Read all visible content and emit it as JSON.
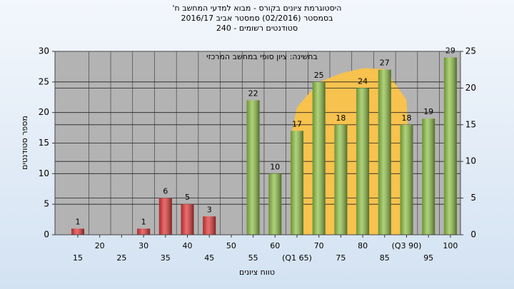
{
  "chart_data": {
    "type": "bar",
    "title": [
      "היסטוגרמת ציונים בקורס - מבוא למדעי המחשב ח'",
      "בסמסטר (02/2016) סמסטר אביב 2016/17",
      "סטודנטים רשומים - 240"
    ],
    "annotation": "בחשינה: ציון סופי במחשב המרכזי",
    "xlabel": "טווח ציונים",
    "ylabel": "מספר סטודנטים",
    "categories": [
      "15",
      "20",
      "25",
      "30",
      "35",
      "40",
      "45",
      "50",
      "55",
      "60",
      "(Q1 65)",
      "70",
      "75",
      "80",
      "85",
      "(Q3 90)",
      "95",
      "100"
    ],
    "values": [
      1,
      0,
      0,
      1,
      6,
      5,
      3,
      0,
      22,
      10,
      17,
      25,
      18,
      24,
      27,
      18,
      19,
      29
    ],
    "colors": [
      "#e23a3a",
      "#e23a3a",
      "#e23a3a",
      "#e23a3a",
      "#e23a3a",
      "#e23a3a",
      "#e23a3a",
      "#e23a3a",
      "#92c24a",
      "#92c24a",
      "#92c24a",
      "#92c24a",
      "#92c24a",
      "#92c24a",
      "#92c24a",
      "#92c24a",
      "#92c24a",
      "#92c24a"
    ],
    "curve": {
      "color": "#f7c24e",
      "axis": "y2",
      "values": [
        null,
        null,
        null,
        null,
        null,
        null,
        null,
        null,
        null,
        null,
        17.4,
        20.8,
        22,
        22.7,
        22.6,
        18.4,
        null,
        null
      ]
    },
    "ylim": [
      0,
      30
    ],
    "yticks": [
      0,
      5,
      10,
      15,
      20,
      25,
      30
    ],
    "y2lim": [
      0,
      25
    ],
    "y2ticks": [
      0,
      5,
      10,
      15,
      20,
      25
    ],
    "grid": true
  }
}
